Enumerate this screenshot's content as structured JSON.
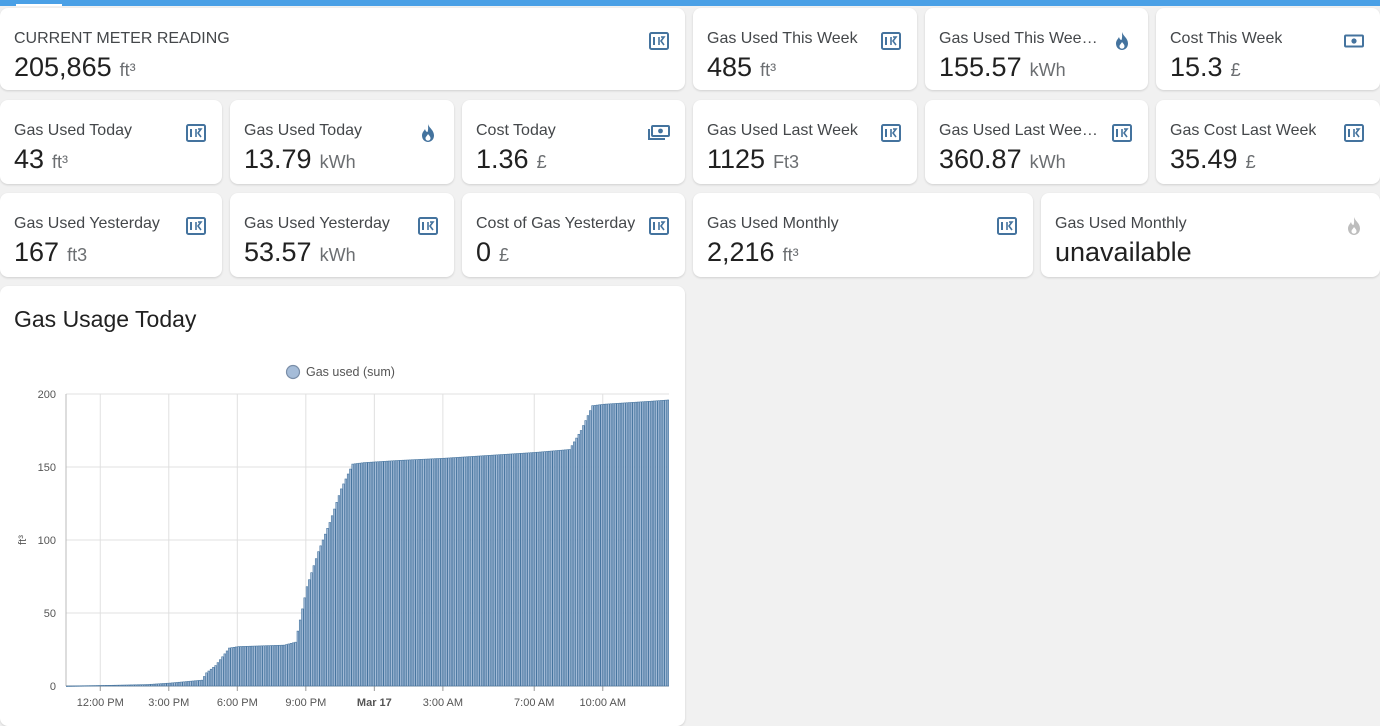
{
  "cards": [
    {
      "id": "current-meter-reading",
      "name": "CURRENT METER READING",
      "value": "205,865",
      "unit": "ft³",
      "icon": "meter-icon"
    },
    {
      "id": "gas-used-this-week",
      "name": "Gas Used This Week",
      "value": "485",
      "unit": "ft³",
      "icon": "meter-icon"
    },
    {
      "id": "gas-used-this-week-kwh",
      "name": "Gas Used This Week (k…",
      "value": "155.57",
      "unit": "kWh",
      "icon": "fire-icon"
    },
    {
      "id": "cost-this-week",
      "name": "Cost This Week",
      "value": "15.3",
      "unit": "£",
      "icon": "cash-icon"
    },
    {
      "id": "gas-used-today",
      "name": "Gas Used Today",
      "value": "43",
      "unit": "ft³",
      "icon": "meter-icon"
    },
    {
      "id": "gas-used-today-kwh",
      "name": "Gas Used Today",
      "value": "13.79",
      "unit": "kWh",
      "icon": "fire-icon"
    },
    {
      "id": "cost-today",
      "name": "Cost Today",
      "value": "1.36",
      "unit": "£",
      "icon": "cash-multiple-icon"
    },
    {
      "id": "gas-used-last-week",
      "name": "Gas Used Last Week",
      "value": "1125",
      "unit": "Ft3",
      "icon": "meter-icon"
    },
    {
      "id": "gas-used-last-week-kwh",
      "name": "Gas Used Last Week kWh",
      "value": "360.87",
      "unit": "kWh",
      "icon": "meter-icon"
    },
    {
      "id": "gas-cost-last-week",
      "name": "Gas Cost Last Week",
      "value": "35.49",
      "unit": "£",
      "icon": "meter-icon"
    },
    {
      "id": "gas-used-yesterday",
      "name": "Gas Used Yesterday",
      "value": "167",
      "unit": "ft3",
      "icon": "meter-icon"
    },
    {
      "id": "gas-used-yesterday-kwh",
      "name": "Gas Used Yesterday",
      "value": "53.57",
      "unit": "kWh",
      "icon": "meter-icon"
    },
    {
      "id": "cost-of-gas-yesterday",
      "name": "Cost of Gas Yesterday",
      "value": "0",
      "unit": "£",
      "icon": "meter-icon"
    },
    {
      "id": "gas-used-monthly",
      "name": "Gas Used Monthly",
      "value": "2,216",
      "unit": "ft³",
      "icon": "meter-icon"
    },
    {
      "id": "gas-used-monthly-unavailable",
      "name": "Gas Used Monthly",
      "value": "unavailable",
      "unit": "",
      "icon": "fire-icon-disabled"
    }
  ],
  "colors": {
    "accent": "#4aa0e6",
    "icon": "#44739e",
    "icon_disabled": "#bdbdbd",
    "bar_fill": "#a5bcd8",
    "bar_stroke": "#44739e"
  },
  "chart_card": {
    "title": "Gas Usage Today"
  },
  "chart_data": {
    "type": "bar",
    "title": "Gas Usage Today",
    "ylabel": "ft³",
    "xlabel": "",
    "ylim": [
      0,
      200
    ],
    "yticks": [
      0,
      50,
      100,
      150,
      200
    ],
    "xticks": [
      {
        "label": "12:00 PM",
        "hour": 0
      },
      {
        "label": "3:00 PM",
        "hour": 3
      },
      {
        "label": "6:00 PM",
        "hour": 6
      },
      {
        "label": "9:00 PM",
        "hour": 9
      },
      {
        "label": "Mar 17",
        "hour": 12,
        "bold": true
      },
      {
        "label": "3:00 AM",
        "hour": 15
      },
      {
        "label": "7:00 AM",
        "hour": 19
      },
      {
        "label": "10:00 AM",
        "hour": 22
      }
    ],
    "xlim_hours": [
      -1.5,
      24.9
    ],
    "grid": true,
    "legend": {
      "position": "top-center",
      "label": "Gas used (sum)"
    },
    "series": [
      {
        "name": "Gas used (sum)",
        "x_hours_start": -1.5,
        "x_hours_step": 0.1,
        "key_points": [
          [
            -1.5,
            0
          ],
          [
            0.5,
            0.5
          ],
          [
            2,
            1
          ],
          [
            3,
            2
          ],
          [
            4.4,
            4
          ],
          [
            4.6,
            9
          ],
          [
            5,
            14
          ],
          [
            5.6,
            26
          ],
          [
            6,
            27
          ],
          [
            8,
            28
          ],
          [
            8.5,
            30
          ],
          [
            9,
            68
          ],
          [
            9.5,
            92
          ],
          [
            10,
            112
          ],
          [
            10.5,
            135
          ],
          [
            11,
            152
          ],
          [
            11.5,
            153
          ],
          [
            13,
            154.5
          ],
          [
            15,
            156
          ],
          [
            17,
            158
          ],
          [
            19,
            160
          ],
          [
            20.5,
            162
          ],
          [
            21,
            175
          ],
          [
            21.5,
            192
          ],
          [
            22,
            193
          ],
          [
            24,
            195
          ],
          [
            24.9,
            196
          ]
        ]
      }
    ]
  }
}
